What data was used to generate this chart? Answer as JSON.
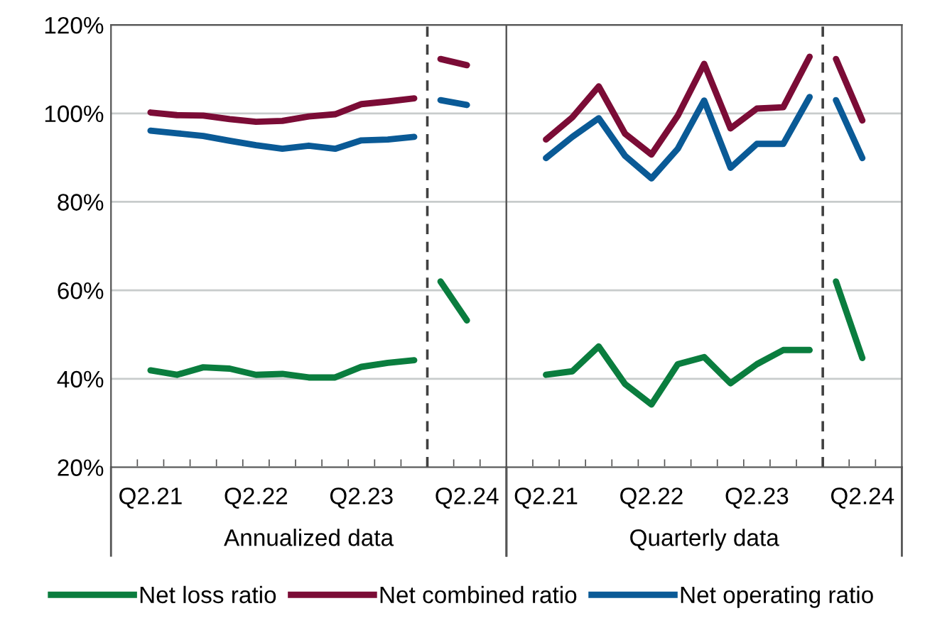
{
  "chart_data": [
    {
      "type": "line",
      "xlabel": "Annualized data",
      "categories": [
        "Q2.21",
        null,
        null,
        null,
        "Q2.22",
        null,
        null,
        null,
        "Q2.23",
        null,
        null,
        null,
        "Q2.24"
      ],
      "series": [
        {
          "name": "Net loss ratio",
          "color": "#0a7d3e",
          "values": [
            41.9,
            40.9,
            42.6,
            42.3,
            40.9,
            41.1,
            40.3,
            40.3,
            42.7,
            43.6,
            44.2,
            62.0,
            53.2
          ]
        },
        {
          "name": "Net combined ratio",
          "color": "#7b0c36",
          "values": [
            100.2,
            99.6,
            99.5,
            98.7,
            98.1,
            98.3,
            99.3,
            99.8,
            102.1,
            102.7,
            103.4,
            112.3,
            110.9
          ]
        },
        {
          "name": "Net operating ratio",
          "color": "#0a5a96",
          "values": [
            96.1,
            95.5,
            94.9,
            93.8,
            92.8,
            92.0,
            92.7,
            92.0,
            93.9,
            94.1,
            94.7,
            103.0,
            101.9
          ]
        }
      ],
      "ylim": [
        20,
        120
      ],
      "yticks": [
        {
          "value": 20,
          "label": "20%"
        },
        {
          "value": 40,
          "label": "40%"
        },
        {
          "value": 60,
          "label": "60%"
        },
        {
          "value": 80,
          "label": "80%"
        },
        {
          "value": 100,
          "label": "100%"
        },
        {
          "value": 120,
          "label": "120%"
        }
      ],
      "grid": "y",
      "legend": "bottom",
      "line_style": "solid",
      "marker": "none"
    },
    {
      "type": "line",
      "xlabel": "Quarterly data",
      "categories": [
        "Q2.21",
        null,
        null,
        null,
        "Q2.22",
        null,
        null,
        null,
        "Q2.23",
        null,
        null,
        null,
        "Q2.24"
      ],
      "series": [
        {
          "color": "#0a7d3e",
          "values": [
            40.9,
            41.7,
            47.3,
            38.8,
            34.2,
            43.3,
            44.9,
            39.0,
            43.3,
            46.5,
            46.5,
            62.0,
            44.7
          ]
        },
        {
          "color": "#7b0c36",
          "values": [
            94.1,
            99.1,
            106.1,
            95.4,
            90.7,
            99.5,
            111.2,
            96.6,
            101.1,
            101.4,
            112.8,
            112.3,
            98.4
          ]
        },
        {
          "color": "#0a5a96",
          "values": [
            89.9,
            94.7,
            98.9,
            90.4,
            85.3,
            92.0,
            102.9,
            87.7,
            93.1,
            93.1,
            103.7,
            103.0,
            89.9
          ]
        }
      ],
      "ylim": [
        20,
        120
      ],
      "yticks": [
        {
          "value": 20,
          "label": null
        },
        {
          "value": 40,
          "label": null
        },
        {
          "value": 60,
          "label": null
        },
        {
          "value": 80,
          "label": null
        },
        {
          "value": 100,
          "label": null
        },
        {
          "value": 120,
          "label": null
        }
      ],
      "grid": "y",
      "tick_labels": "x",
      "line_style": "solid",
      "marker": "none"
    }
  ]
}
